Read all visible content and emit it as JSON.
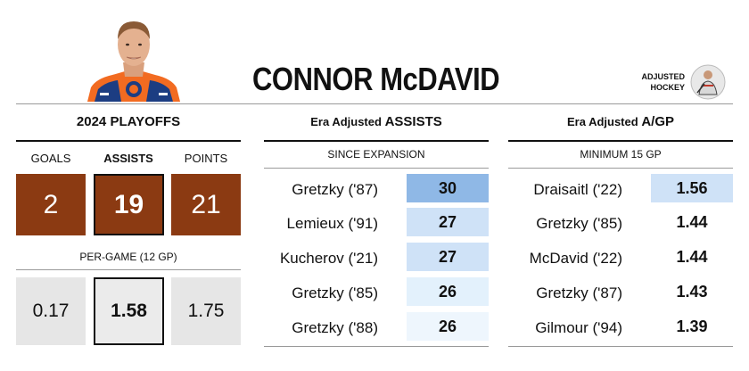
{
  "header": {
    "player_name": "CONNOR McDAVID",
    "brand_line1": "ADJUSTED",
    "brand_line2": "HOCKEY",
    "portrait_icon": "player-portrait",
    "brand_icon": "adjusted-hockey-logo"
  },
  "playoffs": {
    "title": "2024 PLAYOFFS",
    "stat_labels": [
      "GOALS",
      "ASSISTS",
      "POINTS"
    ],
    "totals": [
      "2",
      "19",
      "21"
    ],
    "per_game_label": "PER-GAME (12 GP)",
    "per_game": [
      "0.17",
      "1.58",
      "1.75"
    ],
    "highlight_index": 1
  },
  "assists": {
    "title_prefix": "Era Adjusted",
    "title_main": "ASSISTS",
    "subtitle": "SINCE EXPANSION",
    "rows": [
      {
        "name": "Gretzky ('87)",
        "value": "30"
      },
      {
        "name": "Lemieux ('91)",
        "value": "27"
      },
      {
        "name": "Kucherov ('21)",
        "value": "27"
      },
      {
        "name": "Gretzky ('85)",
        "value": "26"
      },
      {
        "name": "Gretzky ('88)",
        "value": "26"
      }
    ]
  },
  "agp": {
    "title_prefix": "Era Adjusted",
    "title_main": "A/GP",
    "subtitle": "MINIMUM 15 GP",
    "rows": [
      {
        "name": "Draisaitl ('22)",
        "value": "1.56"
      },
      {
        "name": "Gretzky ('85)",
        "value": "1.44"
      },
      {
        "name": "McDavid ('22)",
        "value": "1.44"
      },
      {
        "name": "Gretzky ('87)",
        "value": "1.43"
      },
      {
        "name": "Gilmour ('94)",
        "value": "1.39"
      }
    ]
  },
  "colors": {
    "brown": "#8b3a12",
    "gray_box": "#e6e6e6",
    "rank_shades": [
      "#8fb8e6",
      "#cfe2f7",
      "#cfe2f7",
      "#e3f1fc",
      "#eef6fd"
    ]
  }
}
